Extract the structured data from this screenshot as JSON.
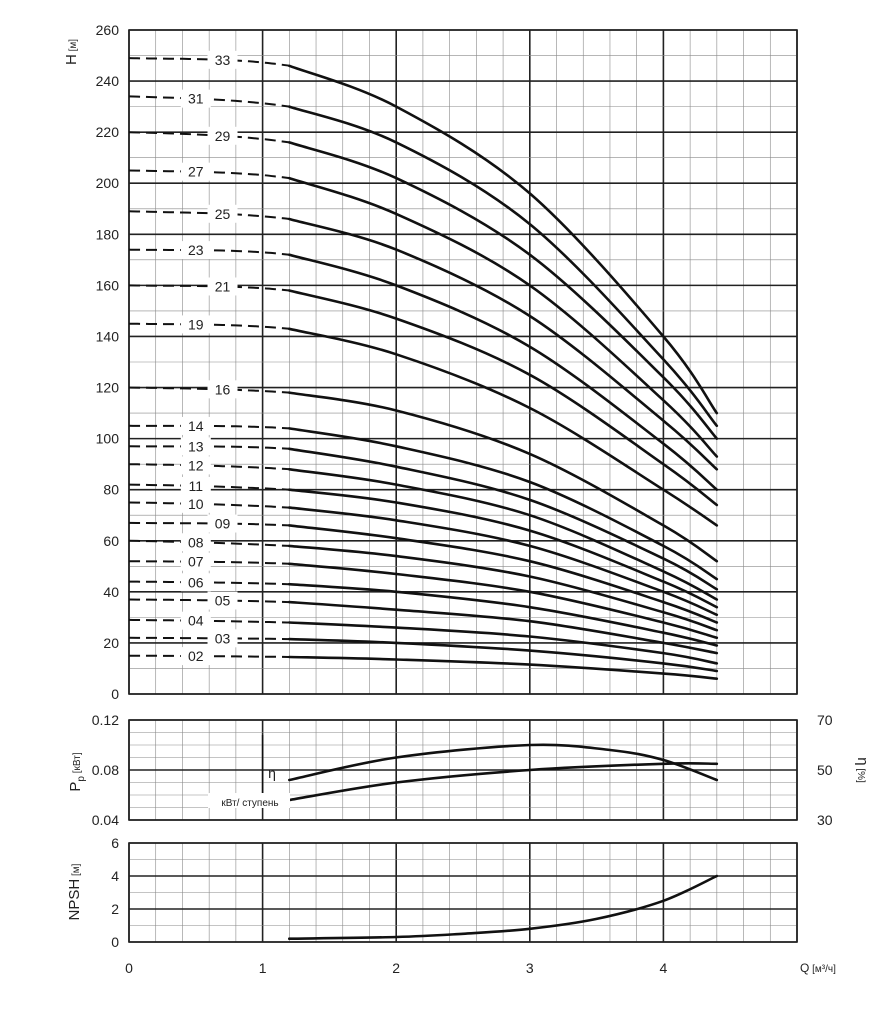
{
  "chart_data": [
    {
      "type": "line",
      "panel": "head",
      "ylabel": "H",
      "yunit": "[м]",
      "xlim": [
        0,
        5
      ],
      "ylim": [
        0,
        260
      ],
      "yticks": [
        0,
        20,
        40,
        60,
        80,
        100,
        120,
        140,
        160,
        180,
        200,
        220,
        240,
        260
      ],
      "dashed_range": [
        0,
        1.2
      ],
      "solid_range": [
        1.2,
        4.4
      ],
      "series": [
        {
          "name": "02",
          "x": [
            0,
            1.2,
            2,
            3,
            4,
            4.4
          ],
          "y": [
            15,
            14.5,
            13.5,
            11.5,
            8,
            6
          ]
        },
        {
          "name": "03",
          "x": [
            0,
            1.2,
            2,
            3,
            4,
            4.4
          ],
          "y": [
            22,
            21.5,
            20,
            17,
            12,
            9
          ]
        },
        {
          "name": "04",
          "x": [
            0,
            1.2,
            2,
            3,
            4,
            4.4
          ],
          "y": [
            29,
            28,
            26,
            22.5,
            16,
            12
          ]
        },
        {
          "name": "05",
          "x": [
            0,
            1.2,
            2,
            3,
            4,
            4.4
          ],
          "y": [
            37,
            36,
            33,
            28.5,
            20,
            16
          ]
        },
        {
          "name": "06",
          "x": [
            0,
            1.2,
            2,
            3,
            4,
            4.4
          ],
          "y": [
            44,
            43,
            40,
            34,
            24,
            19
          ]
        },
        {
          "name": "07",
          "x": [
            0,
            1.2,
            2,
            3,
            4,
            4.4
          ],
          "y": [
            52,
            51,
            47,
            40,
            28,
            22
          ]
        },
        {
          "name": "08",
          "x": [
            0,
            1.2,
            2,
            3,
            4,
            4.4
          ],
          "y": [
            60,
            58,
            54,
            46,
            32,
            25
          ]
        },
        {
          "name": "09",
          "x": [
            0,
            1.2,
            2,
            3,
            4,
            4.4
          ],
          "y": [
            67,
            66,
            61,
            52,
            36,
            28
          ]
        },
        {
          "name": "10",
          "x": [
            0,
            1.2,
            2,
            3,
            4,
            4.4
          ],
          "y": [
            75,
            73,
            68,
            58,
            40,
            31
          ]
        },
        {
          "name": "11",
          "x": [
            0,
            1.2,
            2,
            3,
            4,
            4.4
          ],
          "y": [
            82,
            80,
            75,
            64,
            44,
            34
          ]
        },
        {
          "name": "12",
          "x": [
            0,
            1.2,
            2,
            3,
            4,
            4.4
          ],
          "y": [
            90,
            88,
            82,
            70,
            48,
            37
          ]
        },
        {
          "name": "13",
          "x": [
            0,
            1.2,
            2,
            3,
            4,
            4.4
          ],
          "y": [
            97,
            96,
            89,
            76,
            53,
            41
          ]
        },
        {
          "name": "14",
          "x": [
            0,
            1.2,
            2,
            3,
            4,
            4.4
          ],
          "y": [
            105,
            104,
            97,
            83,
            58,
            45
          ]
        },
        {
          "name": "16",
          "x": [
            0,
            1.2,
            2,
            3,
            4,
            4.4
          ],
          "y": [
            120,
            118,
            111,
            94,
            66,
            52
          ]
        },
        {
          "name": "19",
          "x": [
            0,
            1.2,
            2,
            3,
            4,
            4.4
          ],
          "y": [
            145,
            143,
            133,
            112,
            80,
            66
          ]
        },
        {
          "name": "21",
          "x": [
            0,
            1.2,
            2,
            3,
            4,
            4.4
          ],
          "y": [
            160,
            158,
            147,
            125,
            90,
            74
          ]
        },
        {
          "name": "23",
          "x": [
            0,
            1.2,
            2,
            3,
            4,
            4.4
          ],
          "y": [
            174,
            172,
            160,
            136,
            98,
            80
          ]
        },
        {
          "name": "25",
          "x": [
            0,
            1.2,
            2,
            3,
            4,
            4.4
          ],
          "y": [
            189,
            186,
            174,
            148,
            107,
            88
          ]
        },
        {
          "name": "27",
          "x": [
            0,
            1.2,
            2,
            3,
            4,
            4.4
          ],
          "y": [
            205,
            202,
            188,
            160,
            115,
            93
          ]
        },
        {
          "name": "29",
          "x": [
            0,
            1.2,
            2,
            3,
            4,
            4.4
          ],
          "y": [
            220,
            216,
            202,
            172,
            124,
            100
          ]
        },
        {
          "name": "31",
          "x": [
            0,
            1.2,
            2,
            3,
            4,
            4.4
          ],
          "y": [
            234,
            230,
            216,
            184,
            131,
            105
          ]
        },
        {
          "name": "33",
          "x": [
            0,
            1.2,
            2,
            3,
            4,
            4.4
          ],
          "y": [
            249,
            246,
            230,
            196,
            140,
            110
          ]
        }
      ]
    },
    {
      "type": "line",
      "panel": "power-efficiency",
      "ylabel": "P",
      "ylabel_sub": "p",
      "yunit": "[кВт]",
      "xlim": [
        0,
        5
      ],
      "ylim": [
        0.04,
        0.12
      ],
      "yticks": [
        0.04,
        0.08,
        0.12
      ],
      "y2label": "η",
      "y2unit": "[%]",
      "y2lim": [
        30,
        70
      ],
      "y2ticks": [
        30,
        50,
        70
      ],
      "annotations": [
        "η",
        "кВт/ ступень"
      ],
      "series": [
        {
          "name": "η",
          "axis": "right",
          "x": [
            1.2,
            2,
            3,
            3.6,
            4,
            4.4
          ],
          "y": [
            46,
            55,
            60,
            58,
            54,
            46
          ]
        },
        {
          "name": "кВт/ ступень",
          "axis": "left",
          "x": [
            1.2,
            2,
            3,
            4,
            4.4
          ],
          "y": [
            0.056,
            0.07,
            0.08,
            0.085,
            0.085
          ]
        }
      ]
    },
    {
      "type": "line",
      "panel": "npsh",
      "ylabel": "NPSH",
      "yunit": "[м]",
      "xlabel": "Q",
      "xunit": "[м³/ч]",
      "xlim": [
        0,
        5
      ],
      "xticks": [
        0,
        1,
        2,
        3,
        4
      ],
      "ylim": [
        0,
        6
      ],
      "yticks": [
        0,
        2,
        4,
        6
      ],
      "series": [
        {
          "name": "NPSH",
          "x": [
            1.2,
            2,
            2.5,
            3,
            3.5,
            4,
            4.4
          ],
          "y": [
            0.2,
            0.3,
            0.5,
            0.8,
            1.4,
            2.5,
            4
          ]
        }
      ]
    }
  ]
}
